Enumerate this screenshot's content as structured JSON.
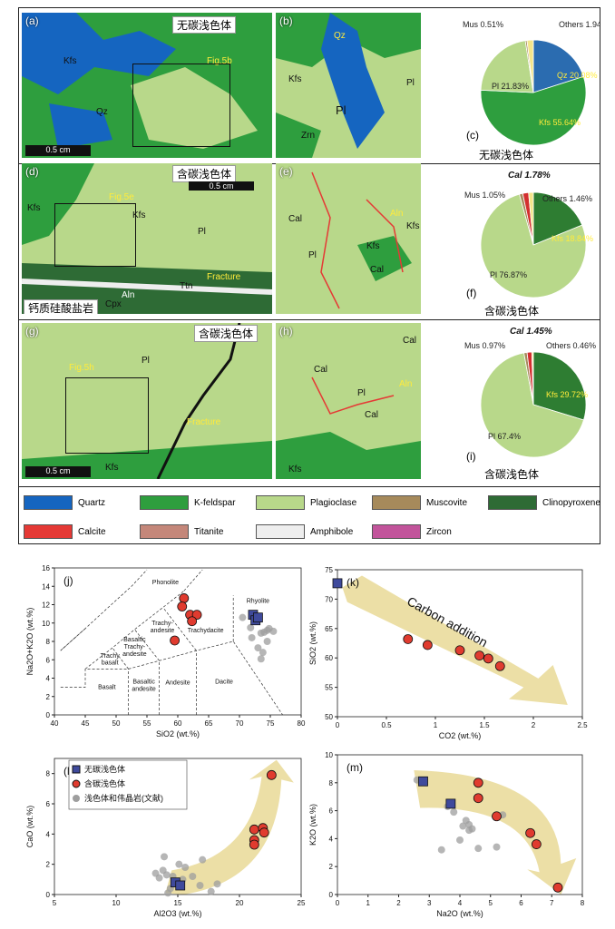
{
  "row1": {
    "a": {
      "label": "(a)",
      "title": "无碳浅色体",
      "minerals": [
        "Kfs",
        "Qz"
      ],
      "fig_ref": "Fig.5b",
      "scale": "0.5 cm"
    },
    "b": {
      "label": "(b)",
      "minerals": [
        "Qz",
        "Kfs",
        "Pl",
        "Pl",
        "Zrn"
      ]
    },
    "c": {
      "label": "(c)",
      "caption": "无碳浅色体"
    }
  },
  "row2": {
    "d": {
      "label": "(d)",
      "title": "含碳浅色体",
      "minerals": [
        "Kfs",
        "Kfs",
        "Pl",
        "Aln",
        "Cpx",
        "Ttn"
      ],
      "fig_ref": "Fig.5e",
      "fracture": "Fracture",
      "scale": "0.5 cm",
      "rock": "钙质硅酸盐岩"
    },
    "e": {
      "label": "(e)",
      "minerals": [
        "Cal",
        "Pl",
        "Kfs",
        "Cal",
        "Kfs"
      ],
      "aln": "Aln"
    },
    "f": {
      "label": "(f)",
      "caption": "含碳浅色体"
    }
  },
  "row3": {
    "g": {
      "label": "(g)",
      "title": "含碳浅色体",
      "minerals": [
        "Pl",
        "Kfs"
      ],
      "fig_ref": "Fig.5h",
      "fracture": "Fracture",
      "scale": "0.5 cm"
    },
    "h": {
      "label": "(h)",
      "minerals": [
        "Cal",
        "Cal",
        "Pl",
        "Cal",
        "Kfs"
      ],
      "aln": "Aln"
    },
    "i": {
      "label": "(i)",
      "caption": "含碳浅色体"
    }
  },
  "legend": [
    {
      "name": "Quartz",
      "color": "#1565c0"
    },
    {
      "name": "K-feldspar",
      "color": "#2e9e3e"
    },
    {
      "name": "Plagioclase",
      "color": "#b8d88a"
    },
    {
      "name": "Muscovite",
      "color": "#a68a5b"
    },
    {
      "name": "Clinopyroxene",
      "color": "#2e6b35"
    },
    {
      "name": "Calcite",
      "color": "#e53935"
    },
    {
      "name": "Titanite",
      "color": "#c4877a"
    },
    {
      "name": "Amphibole",
      "color": "#eeeeee"
    },
    {
      "name": "Zircon",
      "color": "#c2549b"
    }
  ],
  "colors": {
    "quartz": "#1565c0",
    "kfs": "#2e9e3e",
    "pl": "#b8d88a",
    "cal": "#d32f2f",
    "mus": "#a68a5b",
    "others": "#f3e58a",
    "arrow": "#ecdfa6"
  },
  "chart_data": [
    {
      "type": "pie",
      "id": "c",
      "slices": [
        {
          "name": "Qz",
          "label": "Qz 20.08%",
          "value": 20.08,
          "color": "#2b6cb0"
        },
        {
          "name": "Kfs",
          "label": "Kfs 55.64%",
          "value": 55.64,
          "color": "#2e9e3e"
        },
        {
          "name": "Pl",
          "label": "Pl 21.83%",
          "value": 21.83,
          "color": "#b8d88a"
        },
        {
          "name": "Mus",
          "label": "Mus 0.51%",
          "value": 0.51,
          "color": "#a68a5b"
        },
        {
          "name": "Others",
          "label": "Others 1.94%",
          "value": 1.94,
          "color": "#f3e58a"
        }
      ]
    },
    {
      "type": "pie",
      "id": "f",
      "slices": [
        {
          "name": "Kfs",
          "label": "Kfs 18.84%",
          "value": 18.84,
          "color": "#2e7d32"
        },
        {
          "name": "Pl",
          "label": "Pl 76.87%",
          "value": 76.87,
          "color": "#b8d88a"
        },
        {
          "name": "Mus",
          "label": "Mus 1.05%",
          "value": 1.05,
          "color": "#a68a5b"
        },
        {
          "name": "Cal",
          "label": "Cal 1.78%",
          "value": 1.78,
          "color": "#d32f2f"
        },
        {
          "name": "Others",
          "label": "Others 1.46%",
          "value": 1.46,
          "color": "#f3e58a"
        }
      ]
    },
    {
      "type": "pie",
      "id": "i",
      "slices": [
        {
          "name": "Kfs",
          "label": "Kfs 29.72%",
          "value": 29.72,
          "color": "#2e7d32"
        },
        {
          "name": "Pl",
          "label": "Pl 67.4%",
          "value": 67.4,
          "color": "#b8d88a"
        },
        {
          "name": "Mus",
          "label": "Mus 0.97%",
          "value": 0.97,
          "color": "#a68a5b"
        },
        {
          "name": "Cal",
          "label": "Cal 1.45%",
          "value": 1.45,
          "color": "#d32f2f"
        },
        {
          "name": "Others",
          "label": "Others 0.46%",
          "value": 0.46,
          "color": "#f3e58a"
        }
      ]
    },
    {
      "type": "scatter",
      "id": "j",
      "panel": "(j)",
      "xlabel": "SiO2 (wt.%)",
      "ylabel": "Na2O+K2O (wt.%)",
      "xlim": [
        40,
        80
      ],
      "ylim": [
        0,
        16
      ],
      "xticks": [
        40,
        45,
        50,
        55,
        60,
        65,
        70,
        75,
        80
      ],
      "yticks": [
        0,
        2,
        4,
        6,
        8,
        10,
        12,
        14,
        16
      ],
      "fields": [
        "Phonolite",
        "Trachy-andesite",
        "Basaltic Trachy-andesite",
        "Trachy basalt",
        "Trachydacite",
        "Rhyolite",
        "Basalt",
        "Basaltic andesite",
        "Andesite",
        "Dacite"
      ],
      "series": [
        {
          "name": "无碳浅色体",
          "marker": "square",
          "points": [
            [
              72.2,
              10.9
            ],
            [
              72.6,
              10.3
            ],
            [
              73.0,
              10.6
            ]
          ]
        },
        {
          "name": "含碳浅色体",
          "marker": "circle",
          "points": [
            [
              61.0,
              12.7
            ],
            [
              60.7,
              11.8
            ],
            [
              62.0,
              10.9
            ],
            [
              63.1,
              10.9
            ],
            [
              62.3,
              10.2
            ],
            [
              59.5,
              8.1
            ]
          ]
        },
        {
          "name": "浅色体和伟晶岩(文献)",
          "marker": "gray",
          "points": [
            [
              70.5,
              10.6
            ],
            [
              71.8,
              9.5
            ],
            [
              73.5,
              8.9
            ],
            [
              74.0,
              9.0
            ],
            [
              74.5,
              9.2
            ],
            [
              75.5,
              9.1
            ],
            [
              74.8,
              9.4
            ],
            [
              73.0,
              7.3
            ],
            [
              73.8,
              6.8
            ],
            [
              72.0,
              8.4
            ],
            [
              74.5,
              8.0
            ],
            [
              73.5,
              6.1
            ]
          ]
        }
      ]
    },
    {
      "type": "scatter",
      "id": "k",
      "panel": "(k)",
      "xlabel": "CO2 (wt.%)",
      "ylabel": "SiO2 (wt.%)",
      "xlim": [
        0,
        2.5
      ],
      "ylim": [
        50,
        75
      ],
      "xticks": [
        0,
        0.5,
        1,
        1.5,
        2,
        2.5
      ],
      "yticks": [
        50,
        55,
        60,
        65,
        70,
        75
      ],
      "annotation": "Carbon addition",
      "series": [
        {
          "name": "无碳浅色体",
          "marker": "square",
          "points": [
            [
              0,
              72.7
            ]
          ]
        },
        {
          "name": "含碳浅色体",
          "marker": "circle",
          "points": [
            [
              0.72,
              63.2
            ],
            [
              0.92,
              62.2
            ],
            [
              1.25,
              61.3
            ],
            [
              1.45,
              60.4
            ],
            [
              1.54,
              59.9
            ],
            [
              1.66,
              58.6
            ]
          ]
        }
      ]
    },
    {
      "type": "scatter",
      "id": "l",
      "panel": "(l)",
      "xlabel": "Al2O3 (wt.%)",
      "ylabel": "CaO (wt.%)",
      "xlim": [
        5,
        25
      ],
      "ylim": [
        0,
        9
      ],
      "xticks": [
        5,
        10,
        15,
        20,
        25
      ],
      "yticks": [
        0,
        2,
        4,
        6,
        8
      ],
      "series": [
        {
          "name": "无碳浅色体",
          "marker": "square",
          "points": [
            [
              14.8,
              0.8
            ],
            [
              15.2,
              0.6
            ]
          ]
        },
        {
          "name": "含碳浅色体",
          "marker": "circle",
          "points": [
            [
              22.6,
              7.9
            ],
            [
              21.2,
              4.3
            ],
            [
              21.9,
              4.4
            ],
            [
              22.0,
              4.1
            ],
            [
              21.2,
              3.6
            ],
            [
              21.2,
              3.3
            ]
          ]
        },
        {
          "name": "浅色体和伟晶岩(文献)",
          "marker": "gray",
          "points": [
            [
              13.5,
              1.1
            ],
            [
              13.8,
              1.6
            ],
            [
              14.1,
              1.3
            ],
            [
              13.2,
              1.4
            ],
            [
              13.9,
              2.5
            ],
            [
              15.1,
              2.0
            ],
            [
              15.6,
              1.8
            ],
            [
              14.6,
              1.2
            ],
            [
              14.4,
              0.4
            ],
            [
              15.4,
              1.0
            ],
            [
              16.2,
              1.2
            ],
            [
              17.0,
              2.3
            ],
            [
              16.8,
              0.6
            ],
            [
              18.2,
              0.7
            ],
            [
              14.2,
              0.1
            ],
            [
              17.7,
              0.2
            ]
          ]
        }
      ]
    },
    {
      "type": "scatter",
      "id": "m",
      "panel": "(m)",
      "xlabel": "Na2O (wt.%)",
      "ylabel": "K2O (wt.%)",
      "xlim": [
        0,
        8
      ],
      "ylim": [
        0,
        10
      ],
      "xticks": [
        0,
        1,
        2,
        3,
        4,
        5,
        6,
        7,
        8
      ],
      "yticks": [
        0,
        2,
        4,
        6,
        8,
        10
      ],
      "series": [
        {
          "name": "无碳浅色体",
          "marker": "square",
          "points": [
            [
              2.8,
              8.1
            ],
            [
              3.7,
              6.5
            ]
          ]
        },
        {
          "name": "含碳浅色体",
          "marker": "circle",
          "points": [
            [
              4.6,
              8.0
            ],
            [
              4.6,
              6.9
            ],
            [
              5.2,
              5.6
            ],
            [
              6.3,
              4.4
            ],
            [
              6.5,
              3.6
            ],
            [
              7.2,
              0.5
            ]
          ]
        },
        {
          "name": "浅色体和伟晶岩(文献)",
          "marker": "gray",
          "points": [
            [
              2.6,
              8.2
            ],
            [
              3.6,
              6.3
            ],
            [
              3.8,
              5.9
            ],
            [
              4.1,
              4.9
            ],
            [
              4.3,
              5.0
            ],
            [
              4.2,
              5.3
            ],
            [
              4.4,
              4.7
            ],
            [
              4.0,
              3.9
            ],
            [
              5.4,
              5.7
            ],
            [
              3.4,
              3.2
            ],
            [
              4.6,
              3.3
            ],
            [
              5.2,
              3.4
            ],
            [
              4.3,
              4.6
            ]
          ]
        }
      ]
    }
  ]
}
